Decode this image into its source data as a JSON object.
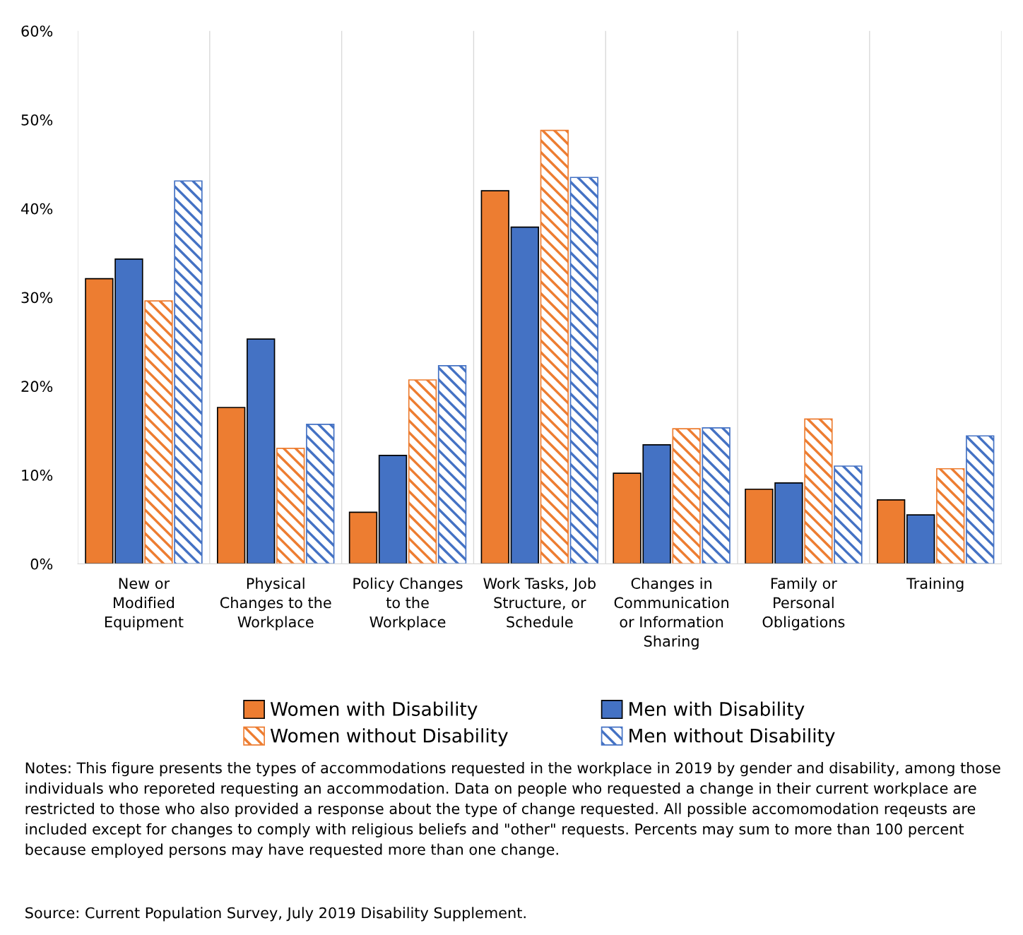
{
  "chart_data": {
    "type": "bar",
    "categories": [
      "New or\nModified\nEquipment",
      "Physical\nChanges to the\nWorkplace",
      "Policy Changes\nto the\nWorkplace",
      "Work Tasks, Job\nStructure, or\nSchedule",
      "Changes in\nCommunication\nor Information\nSharing",
      "Family or\nPersonal\nObligations",
      "Training"
    ],
    "series": [
      {
        "name": "Women with Disability",
        "color": "#ed7d31",
        "values": [
          32.1,
          17.6,
          5.8,
          42.0,
          10.2,
          8.4,
          7.2
        ]
      },
      {
        "name": "Men with Disability",
        "color": "#4472c4",
        "values": [
          34.3,
          25.3,
          12.2,
          37.9,
          13.4,
          9.1,
          5.5
        ]
      },
      {
        "name": "Women without Disability",
        "color": "#ed7d31",
        "values": [
          29.6,
          13.0,
          20.7,
          48.8,
          15.2,
          16.3,
          10.7
        ]
      },
      {
        "name": "Men without Disability",
        "color": "#4472c4",
        "values": [
          43.1,
          15.7,
          22.3,
          43.5,
          15.3,
          11.0,
          14.4
        ]
      }
    ],
    "ylim": [
      0,
      60
    ],
    "yticks": [
      {
        "value": 0,
        "label": "0%"
      },
      {
        "value": 10,
        "label": "10%"
      },
      {
        "value": 20,
        "label": "20%"
      },
      {
        "value": 30,
        "label": "30%"
      },
      {
        "value": 40,
        "label": "40%"
      },
      {
        "value": 50,
        "label": "50%"
      },
      {
        "value": 60,
        "label": "60%"
      }
    ],
    "grid": "x",
    "legend": "bottom",
    "annotations": [
      "Notes: This figure presents the types of accommodations requested in the workplace in 2019 by gender and disability, among those individuals who reporeted requesting an accommodation. Data on people who requested a change in their current workplace are restricted to those who also provided a response about the type of change requested. All possible accomomodation reqeusts are included except for changes to comply with religious beliefs and \"other\" requests. Percents may sum to more than 100 percent because employed persons may have requested more than one change.",
      "Source: Current Population Survey, July 2019 Disability Supplement."
    ]
  }
}
